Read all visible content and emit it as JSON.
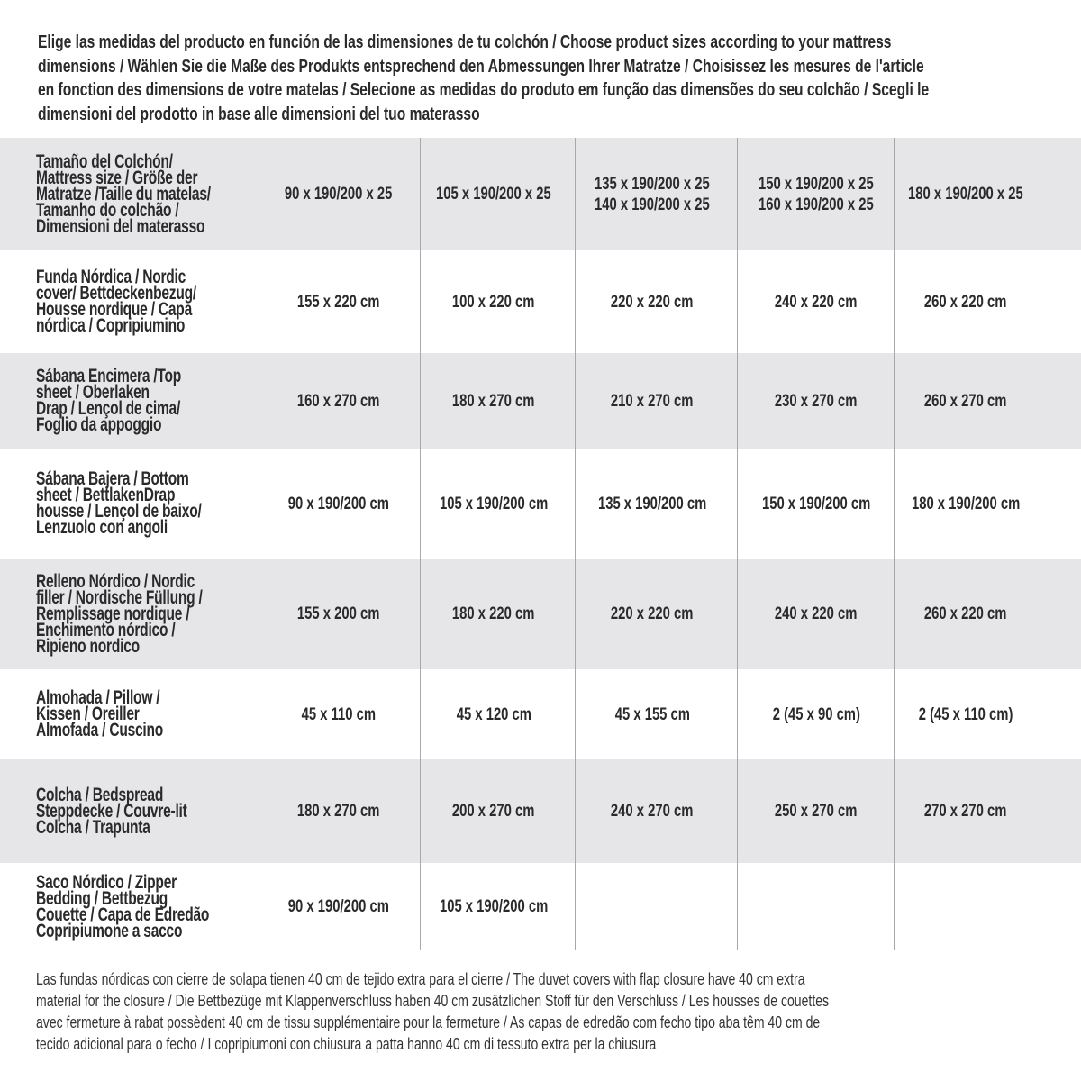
{
  "intro": {
    "lines": [
      "Elige las medidas del producto en función de las dimensiones de tu colchón / Choose product sizes according to your mattress",
      "dimensions / Wählen Sie die Maße des Produkts entsprechend den Abmessungen Ihrer Matratze / Choisissez les mesures de l'article",
      "en fonction des dimensions de votre matelas / Selecione as medidas do produto em função das dimensões do seu colchão / Scegli le",
      "dimensioni del prodotto in base alle dimensioni del tuo materasso"
    ]
  },
  "table": {
    "row_color": "#e6e6e8",
    "rows": [
      {
        "label": [
          "Tamaño del Colchón/",
          "Mattress size / Größe der",
          "Matratze /Taille du matelas/",
          "Tamanho do colchão /",
          "Dimensioni del materasso"
        ],
        "cells": [
          [
            "90 x 190/200 x 25"
          ],
          [
            "105 x 190/200 x 25"
          ],
          [
            "135 x 190/200 x 25",
            "140 x 190/200 x 25"
          ],
          [
            "150 x 190/200 x 25",
            "160 x 190/200 x 25"
          ],
          [
            "180 x 190/200 x 25"
          ]
        ]
      },
      {
        "label": [
          "Funda Nórdica /   Nordic",
          "cover/ Bettdeckenbezug/",
          "Housse nordique  / Capa",
          "nórdica / Copripiumino"
        ],
        "cells": [
          [
            "155 x 220 cm"
          ],
          [
            "100 x 220 cm"
          ],
          [
            "220 x 220 cm"
          ],
          [
            "240 x 220 cm"
          ],
          [
            "260 x 220 cm"
          ]
        ]
      },
      {
        "label": [
          "Sábana Encimera /Top",
          "sheet / Oberlaken",
          "Drap / Lençol de cima/",
          "Foglio da appoggio"
        ],
        "cells": [
          [
            "160 x 270 cm"
          ],
          [
            "180 x 270 cm"
          ],
          [
            "210 x 270 cm"
          ],
          [
            "230 x 270 cm"
          ],
          [
            "260 x 270 cm"
          ]
        ]
      },
      {
        "label": [
          "Sábana Bajera / Bottom",
          "sheet / BettlakenDrap",
          "housse / Lençol de baixo/",
          "Lenzuolo con angoli"
        ],
        "cells": [
          [
            "90 x 190/200 cm"
          ],
          [
            "105 x 190/200 cm"
          ],
          [
            "135 x 190/200 cm"
          ],
          [
            "150 x 190/200 cm"
          ],
          [
            "180 x 190/200 cm"
          ]
        ]
      },
      {
        "label": [
          "Relleno Nórdico / Nordic",
          "filler / Nordische Füllung /",
          "Remplissage nordique /",
          "Enchimento nórdico /",
          "Ripieno nordico"
        ],
        "cells": [
          [
            "155 x 200 cm"
          ],
          [
            "180 x 220 cm"
          ],
          [
            "220 x 220 cm"
          ],
          [
            "240 x 220 cm"
          ],
          [
            "260 x 220 cm"
          ]
        ]
      },
      {
        "label": [
          "Almohada  / Pillow /",
          "Kissen / Oreiller",
          "Almofada / Cuscino"
        ],
        "cells": [
          [
            "45 x 110 cm"
          ],
          [
            "45 x 120 cm"
          ],
          [
            "45 x 155 cm"
          ],
          [
            "2 (45 x 90 cm)"
          ],
          [
            "2 (45 x 110 cm)"
          ]
        ]
      },
      {
        "label": [
          "Colcha / Bedspread",
          "Steppdecke / Couvre-lit",
          "Colcha / Trapunta"
        ],
        "cells": [
          [
            "180 x 270 cm"
          ],
          [
            "200 x 270 cm"
          ],
          [
            "240 x 270 cm"
          ],
          [
            "250 x 270 cm"
          ],
          [
            "270 x 270 cm"
          ]
        ]
      },
      {
        "label": [
          "Saco Nórdico / Zipper",
          "Bedding / Bettbezug",
          "Couette   / Capa de Edredão",
          "Copripiumone a sacco"
        ],
        "cells": [
          [
            "90 x 190/200 cm"
          ],
          [
            "105 x 190/200 cm"
          ],
          [],
          [],
          []
        ]
      }
    ]
  },
  "footer": {
    "lines": [
      "Las fundas nórdicas con cierre de solapa tienen 40 cm de tejido extra para el cierre   / The duvet covers with flap closure have 40 cm extra",
      "material for the closure / Die Bettbezüge mit Klappenverschluss haben 40 cm zusätzlichen Stoff für den Verschluss / Les housses de couettes",
      "avec fermeture à rabat possèdent 40 cm de tissu supplémentaire pour la fermeture  / As capas de edredão com fecho tipo aba têm 40 cm de",
      "tecido adicional para o fecho / I copripiumoni con chiusura a patta hanno 40 cm di tessuto extra per la chiusura"
    ]
  }
}
